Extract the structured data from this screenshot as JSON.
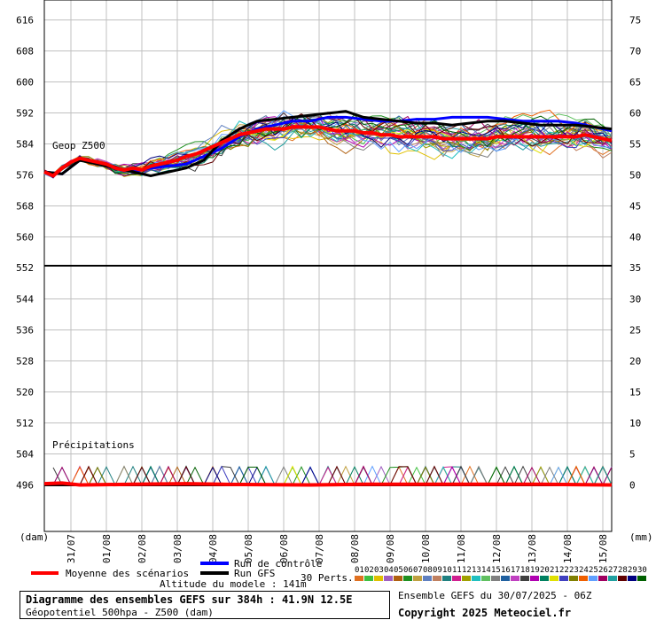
{
  "chart_data": {
    "type": "line",
    "panels": [
      {
        "name": "Geop Z500",
        "label": "Geop Z500",
        "left_axis_ticks": [
          616,
          608,
          600,
          592,
          584,
          576,
          568,
          560
        ],
        "right_axis_ticks": [
          75,
          70,
          65,
          60,
          55,
          50,
          45,
          40
        ],
        "ylim": [
          552,
          620
        ]
      },
      {
        "name": "Précipitations",
        "label": "Précipitations",
        "left_axis_ticks": [
          552,
          544,
          536,
          528,
          520,
          512,
          504,
          496
        ],
        "right_axis_ticks": [
          35,
          30,
          25,
          20,
          15,
          10,
          5,
          0
        ],
        "ylim": [
          0,
          35
        ]
      }
    ],
    "x_tick_labels": [
      "31/07",
      "01/08",
      "02/08",
      "03/08",
      "04/08",
      "05/08",
      "06/08",
      "07/08",
      "08/08",
      "09/08",
      "10/08",
      "11/08",
      "12/08",
      "13/08",
      "14/08",
      "15/08"
    ],
    "x_hours": [
      0,
      384
    ],
    "left_unit": "(dam)",
    "right_unit": "(mm)",
    "series": [
      {
        "name": "Moyenne des scénarios",
        "color": "#ff0000",
        "z500": [
          [
            0,
            576
          ],
          [
            6,
            575
          ],
          [
            12,
            577
          ],
          [
            18,
            578.5
          ],
          [
            24,
            579.5
          ],
          [
            30,
            579
          ],
          [
            36,
            578.5
          ],
          [
            42,
            578
          ],
          [
            48,
            577
          ],
          [
            54,
            576.5
          ],
          [
            60,
            577
          ],
          [
            66,
            576.5
          ],
          [
            72,
            577.5
          ],
          [
            78,
            578
          ],
          [
            84,
            578.5
          ],
          [
            90,
            579
          ],
          [
            96,
            580
          ],
          [
            102,
            580.5
          ],
          [
            108,
            581.5
          ],
          [
            114,
            582.5
          ],
          [
            120,
            583.5
          ],
          [
            126,
            584.5
          ],
          [
            132,
            585.5
          ],
          [
            138,
            586
          ],
          [
            144,
            586.5
          ],
          [
            150,
            587
          ],
          [
            156,
            587
          ],
          [
            162,
            587
          ],
          [
            168,
            587.5
          ],
          [
            174,
            587.5
          ],
          [
            180,
            587.5
          ],
          [
            186,
            587.5
          ],
          [
            192,
            587
          ],
          [
            198,
            586.5
          ],
          [
            204,
            586.5
          ],
          [
            210,
            586.5
          ],
          [
            216,
            586
          ],
          [
            222,
            586
          ],
          [
            228,
            585.5
          ],
          [
            234,
            585.5
          ],
          [
            240,
            585
          ],
          [
            246,
            585
          ],
          [
            252,
            585
          ],
          [
            258,
            585
          ],
          [
            264,
            585
          ],
          [
            270,
            584.5
          ],
          [
            276,
            584.5
          ],
          [
            282,
            584.5
          ],
          [
            288,
            584.5
          ],
          [
            294,
            584.5
          ],
          [
            300,
            584.5
          ],
          [
            306,
            585
          ],
          [
            312,
            585
          ],
          [
            318,
            585
          ],
          [
            324,
            585
          ],
          [
            330,
            585
          ],
          [
            336,
            585
          ],
          [
            342,
            585
          ],
          [
            348,
            585
          ],
          [
            354,
            585
          ],
          [
            360,
            585
          ],
          [
            366,
            585.5
          ],
          [
            372,
            585
          ],
          [
            378,
            584.5
          ],
          [
            384,
            584
          ]
        ],
        "precip": [
          [
            0,
            0.2
          ],
          [
            12,
            0.3
          ],
          [
            24,
            0
          ],
          [
            60,
            0.1
          ],
          [
            96,
            0.2
          ],
          [
            120,
            0.1
          ],
          [
            180,
            0
          ],
          [
            216,
            0.1
          ],
          [
            264,
            0.1
          ],
          [
            300,
            0.1
          ],
          [
            336,
            0.1
          ],
          [
            384,
            0
          ]
        ]
      },
      {
        "name": "Run de contrôle",
        "color": "#0000ff",
        "z500": [
          [
            0,
            576
          ],
          [
            12,
            575.5
          ],
          [
            24,
            579
          ],
          [
            36,
            578.5
          ],
          [
            48,
            577
          ],
          [
            60,
            576
          ],
          [
            72,
            577
          ],
          [
            84,
            577.5
          ],
          [
            96,
            578
          ],
          [
            108,
            580
          ],
          [
            120,
            582
          ],
          [
            132,
            585
          ],
          [
            144,
            587
          ],
          [
            156,
            588
          ],
          [
            168,
            589
          ],
          [
            180,
            589
          ],
          [
            192,
            590
          ],
          [
            204,
            590
          ],
          [
            216,
            589.5
          ],
          [
            228,
            589
          ],
          [
            240,
            589
          ],
          [
            252,
            589.5
          ],
          [
            264,
            589.5
          ],
          [
            276,
            590
          ],
          [
            288,
            590
          ],
          [
            300,
            590
          ],
          [
            312,
            589.5
          ],
          [
            324,
            589
          ],
          [
            336,
            589
          ],
          [
            348,
            589
          ],
          [
            360,
            588.5
          ],
          [
            372,
            587.5
          ],
          [
            384,
            586.5
          ]
        ],
        "precip": [
          [
            0,
            0
          ],
          [
            384,
            0
          ]
        ]
      },
      {
        "name": "Run GFS",
        "color": "#000000",
        "z500": [
          [
            0,
            576
          ],
          [
            12,
            575.5
          ],
          [
            24,
            579
          ],
          [
            36,
            578
          ],
          [
            48,
            577
          ],
          [
            60,
            576
          ],
          [
            72,
            575
          ],
          [
            84,
            576
          ],
          [
            96,
            577
          ],
          [
            108,
            579
          ],
          [
            120,
            584
          ],
          [
            132,
            587
          ],
          [
            144,
            589
          ],
          [
            156,
            589.5
          ],
          [
            168,
            590
          ],
          [
            180,
            590.5
          ],
          [
            192,
            591
          ],
          [
            204,
            591.5
          ],
          [
            216,
            590
          ],
          [
            228,
            589.5
          ],
          [
            240,
            589
          ],
          [
            252,
            588.5
          ],
          [
            264,
            588.5
          ],
          [
            276,
            588
          ],
          [
            288,
            588.5
          ],
          [
            300,
            589
          ],
          [
            312,
            589
          ],
          [
            324,
            588.5
          ],
          [
            336,
            588
          ],
          [
            348,
            588
          ],
          [
            360,
            588
          ],
          [
            372,
            587.5
          ],
          [
            384,
            587
          ]
        ],
        "precip": [
          [
            0,
            0
          ],
          [
            384,
            0
          ]
        ]
      }
    ],
    "perturbation_count": "30 Perts.",
    "perturbation_labels": [
      "01",
      "02",
      "03",
      "04",
      "05",
      "06",
      "07",
      "08",
      "09",
      "10",
      "11",
      "12",
      "13",
      "14",
      "15",
      "16",
      "17",
      "18",
      "19",
      "20",
      "21",
      "22",
      "23",
      "24",
      "25",
      "26",
      "27",
      "28",
      "29",
      "30"
    ],
    "perturbation_colors": [
      "#e07020",
      "#40c040",
      "#e0c000",
      "#a060c0",
      "#b06010",
      "#209020",
      "#c0a040",
      "#6080c0",
      "#c08060",
      "#208080",
      "#d02090",
      "#a0a000",
      "#20c0c0",
      "#60c060",
      "#808080",
      "#2060a0",
      "#c040c0",
      "#404040",
      "#b000b0",
      "#008060",
      "#e0e000",
      "#4040c0",
      "#808000",
      "#f06000",
      "#60a0ff",
      "#a00060",
      "#20a0a0",
      "#600000",
      "#000080",
      "#006000"
    ]
  },
  "legend": {
    "mean": "Moyenne des scénarios",
    "control": "Run de contrôle",
    "gfs": "Run GFS",
    "altitude": "Altitude du modele : 141m",
    "perts": "30 Perts."
  },
  "info": {
    "title": "Diagramme des ensembles GEFS sur 384h : 41.9N 12.5E",
    "subtitle": "Géopotentiel 500hpa - Z500 (dam)",
    "run": "Ensemble GEFS du 30/07/2025 - 06Z",
    "copyright": "Copyright 2025 Meteociel.fr"
  },
  "colors": {
    "mean": "#ff0000",
    "control": "#0000ff",
    "gfs": "#000000",
    "grid": "#c0c0c0"
  }
}
